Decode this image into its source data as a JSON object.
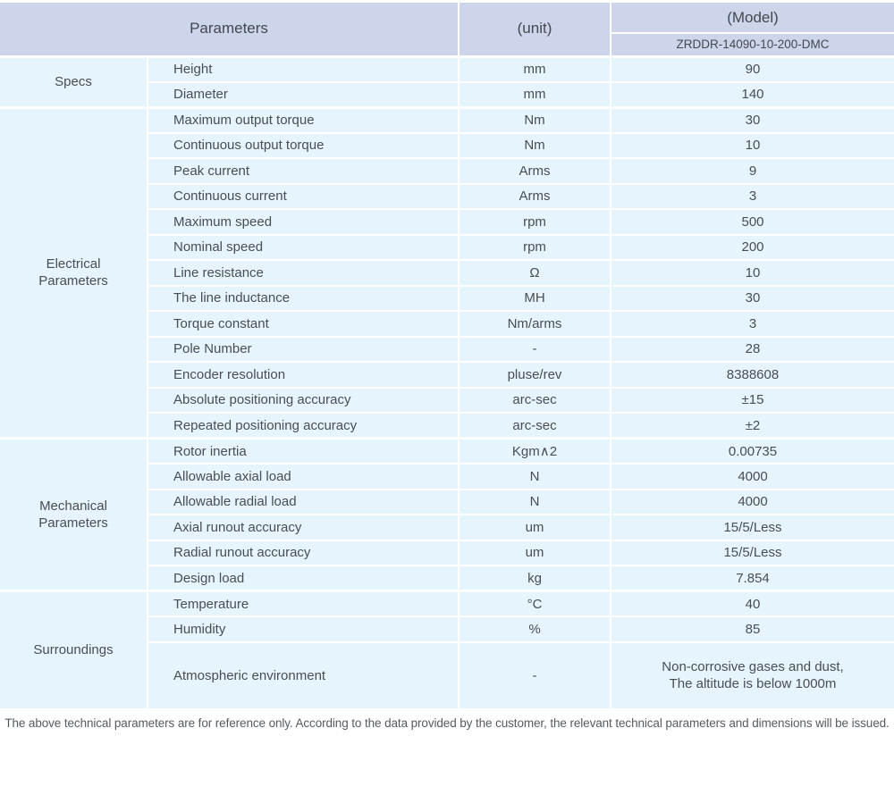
{
  "colors": {
    "header_bg": "#cdd5eb",
    "row_bg": "#e5f4fd",
    "divider": "#ffffff",
    "text": "#4a4d52"
  },
  "table": {
    "header": {
      "parameters_label": "Parameters",
      "unit_label": "(unit)",
      "model_label": "(Model)",
      "model_value": "ZRDDR-14090-10-200-DMC"
    },
    "sections": [
      {
        "name": "Specs",
        "rows": [
          {
            "parameter": "Height",
            "unit": "mm",
            "value": "90"
          },
          {
            "parameter": "Diameter",
            "unit": "mm",
            "value": "140"
          }
        ]
      },
      {
        "name": "Electrical\nParameters",
        "rows": [
          {
            "parameter": "Maximum output torque",
            "unit": "Nm",
            "value": "30"
          },
          {
            "parameter": "Continuous output torque",
            "unit": "Nm",
            "value": "10"
          },
          {
            "parameter": "Peak current",
            "unit": "Arms",
            "value": "9"
          },
          {
            "parameter": "Continuous current",
            "unit": "Arms",
            "value": "3"
          },
          {
            "parameter": "Maximum speed",
            "unit": "rpm",
            "value": "500"
          },
          {
            "parameter": "Nominal speed",
            "unit": "rpm",
            "value": "200"
          },
          {
            "parameter": "Line resistance",
            "unit": "Ω",
            "value": "10"
          },
          {
            "parameter": "The line inductance",
            "unit": "MH",
            "value": "30"
          },
          {
            "parameter": "Torque constant",
            "unit": "Nm/arms",
            "value": "3"
          },
          {
            "parameter": "Pole Number",
            "unit": "-",
            "value": "28"
          },
          {
            "parameter": "Encoder resolution",
            "unit": "pluse/rev",
            "value": "8388608"
          },
          {
            "parameter": "Absolute positioning accuracy",
            "unit": "arc-sec",
            "value": "±15"
          },
          {
            "parameter": "Repeated positioning accuracy",
            "unit": "arc-sec",
            "value": "±2"
          }
        ]
      },
      {
        "name": "Mechanical\nParameters",
        "rows": [
          {
            "parameter": "Rotor inertia",
            "unit": "Kgm∧2",
            "value": "0.00735"
          },
          {
            "parameter": "Allowable axial load",
            "unit": "N",
            "value": "4000"
          },
          {
            "parameter": "Allowable radial load",
            "unit": "N",
            "value": "4000"
          },
          {
            "parameter": "Axial runout accuracy",
            "unit": "um",
            "value": "15/5/Less"
          },
          {
            "parameter": "Radial runout accuracy",
            "unit": "um",
            "value": "15/5/Less"
          },
          {
            "parameter": "Design load",
            "unit": "kg",
            "value": "7.854"
          }
        ]
      },
      {
        "name": "Surroundings",
        "rows": [
          {
            "parameter": "Temperature",
            "unit": "°C",
            "value": "40"
          },
          {
            "parameter": "Humidity",
            "unit": "%",
            "value": "85"
          },
          {
            "parameter": "Atmospheric environment",
            "unit": "-",
            "value": "Non-corrosive gases and dust,\nThe altitude is below 1000m",
            "tall": true
          }
        ]
      }
    ]
  },
  "footer": {
    "note": "The above technical parameters are for reference only. According to the data provided by the customer, the relevant technical parameters and dimensions will be issued."
  }
}
